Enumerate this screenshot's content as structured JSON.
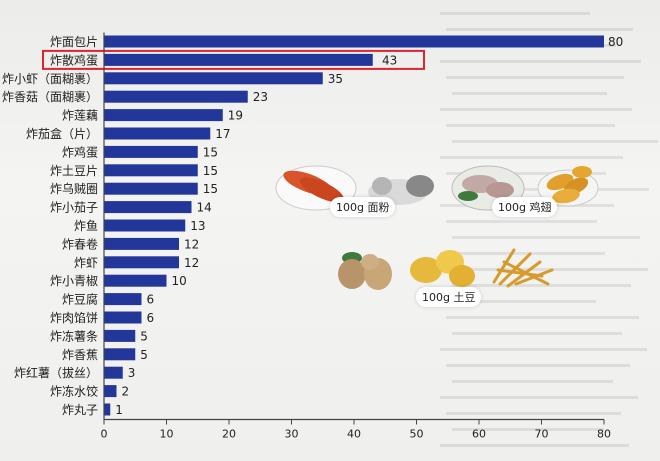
{
  "chart_data": {
    "type": "bar",
    "orientation": "horizontal",
    "categories": [
      "炸面包片",
      "炸散鸡蛋",
      "炸小虾（面糊裹）",
      "炸香菇（面糊裹）",
      "炸莲藕",
      "炸茄盒（片）",
      "炸鸡蛋",
      "炸土豆片",
      "炸乌贼圈",
      "炸小茄子",
      "炸鱼",
      "炸春卷",
      "炸虾",
      "炸小青椒",
      "炸豆腐",
      "炸肉馅饼",
      "炸冻薯条",
      "炸香蕉",
      "炸红薯（拔丝）",
      "炸冻水饺",
      "炸丸子"
    ],
    "values": [
      80,
      43,
      35,
      23,
      19,
      17,
      15,
      15,
      15,
      14,
      13,
      12,
      12,
      10,
      6,
      6,
      5,
      5,
      3,
      2,
      1
    ],
    "xlim": [
      0,
      80
    ],
    "xticks": [
      0,
      10,
      20,
      30,
      40,
      50,
      60,
      70,
      80
    ],
    "highlighted_category": "炸散鸡蛋",
    "grid": false,
    "colors": {
      "bar": "#23379a",
      "highlight_box": "#e0242f"
    }
  },
  "illustrations": {
    "flour_label": "100g 面粉",
    "chicken_label": "100g 鸡翅",
    "potato_label": "100g 土豆"
  }
}
